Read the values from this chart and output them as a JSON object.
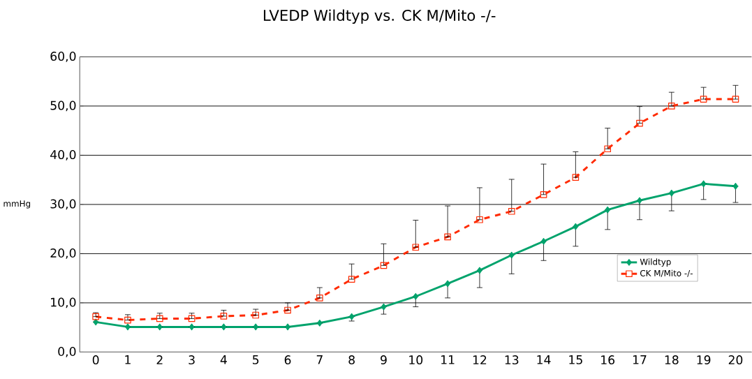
{
  "chart_data": {
    "type": "line",
    "title": "LVEDP Wildtyp  vs.  CK M/Mito -/-",
    "ylabel": "mmHg",
    "categories": [
      "0",
      "1",
      "2",
      "3",
      "4",
      "5",
      "6",
      "7",
      "8",
      "9",
      "10",
      "11",
      "12",
      "13",
      "14",
      "15",
      "16",
      "17",
      "18",
      "19",
      "20"
    ],
    "ylim": [
      0,
      60
    ],
    "yticks": [
      {
        "value": 0,
        "label": "0,0"
      },
      {
        "value": 10,
        "label": "10,0"
      },
      {
        "value": 20,
        "label": "20,0"
      },
      {
        "value": 30,
        "label": "30,0"
      },
      {
        "value": 40,
        "label": "40,0"
      },
      {
        "value": 50,
        "label": "50,0"
      },
      {
        "value": 60,
        "label": "60,0"
      }
    ],
    "grid": "y",
    "legend": "right",
    "series": [
      {
        "name": "Wildtyp",
        "color": "#00a36c",
        "marker": "diamond",
        "line_style": "solid",
        "values": [
          6.1,
          5.1,
          5.1,
          5.1,
          5.1,
          5.1,
          5.1,
          5.9,
          7.2,
          9.2,
          11.3,
          13.9,
          16.6,
          19.7,
          22.5,
          25.5,
          28.9,
          30.8,
          32.3,
          34.2,
          33.7
        ],
        "errors": [
          null,
          null,
          null,
          null,
          null,
          null,
          null,
          null,
          [
            6.3,
            7.2
          ],
          [
            7.7,
            9.2
          ],
          [
            9.2,
            11.3
          ],
          [
            11.0,
            13.9
          ],
          [
            13.1,
            16.6
          ],
          [
            15.9,
            19.7
          ],
          [
            18.6,
            22.5
          ],
          [
            21.5,
            25.5
          ],
          [
            24.9,
            28.9
          ],
          [
            26.9,
            30.8
          ],
          [
            28.7,
            32.3
          ],
          [
            31.0,
            34.2
          ],
          [
            30.4,
            33.7
          ]
        ]
      },
      {
        "name": "CK M/Mito -/-",
        "color": "#ff2a00",
        "marker": "square",
        "line_style": "dashed",
        "values": [
          7.2,
          6.5,
          6.8,
          6.8,
          7.3,
          7.5,
          8.5,
          11.0,
          14.8,
          17.6,
          21.3,
          23.4,
          26.9,
          28.6,
          32.0,
          35.5,
          41.3,
          46.5,
          50.0,
          51.4,
          51.4
        ],
        "errors": [
          [
            7.2,
            8.0
          ],
          [
            6.5,
            7.6
          ],
          [
            6.8,
            7.9
          ],
          [
            6.8,
            7.9
          ],
          [
            7.3,
            8.5
          ],
          [
            7.5,
            8.7
          ],
          [
            8.5,
            10.0
          ],
          [
            11.0,
            13.1
          ],
          [
            14.8,
            17.9
          ],
          [
            17.6,
            22.0
          ],
          [
            21.3,
            26.8
          ],
          [
            23.4,
            29.7
          ],
          [
            26.9,
            33.4
          ],
          [
            28.6,
            35.1
          ],
          [
            32.0,
            38.2
          ],
          [
            35.5,
            40.7
          ],
          [
            41.3,
            45.5
          ],
          [
            46.5,
            49.9
          ],
          [
            50.0,
            52.8
          ],
          [
            51.4,
            53.8
          ],
          [
            51.4,
            54.2
          ]
        ]
      }
    ]
  }
}
